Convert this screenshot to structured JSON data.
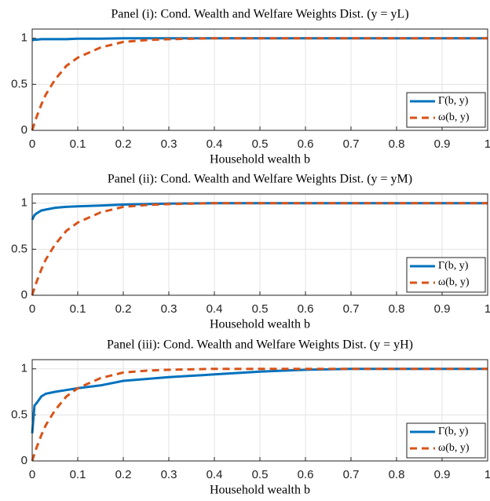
{
  "chart_data": [
    {
      "type": "line",
      "title": "Panel (i): Cond. Wealth and Welfare Weights Dist. (y = yL)",
      "xlabel": "Household wealth b",
      "x": [
        0,
        0.005,
        0.01,
        0.02,
        0.03,
        0.05,
        0.075,
        0.1,
        0.15,
        0.2,
        0.25,
        0.3,
        0.4,
        0.5,
        0.6,
        0.7,
        0.8,
        0.9,
        1
      ],
      "series": [
        {
          "name": "Γ(b, y)",
          "color": "#0072BD",
          "linestyle": "solid",
          "values": [
            0.98,
            0.985,
            0.985,
            0.99,
            0.99,
            0.99,
            0.99,
            0.995,
            0.995,
            1,
            1,
            1,
            1,
            1,
            1,
            1,
            1,
            1,
            1
          ]
        },
        {
          "name": "ω(b, y)",
          "color": "#D95319",
          "linestyle": "dashed",
          "values": [
            0,
            0.08,
            0.15,
            0.28,
            0.39,
            0.55,
            0.7,
            0.79,
            0.9,
            0.96,
            0.98,
            0.99,
            1,
            1,
            1,
            1,
            1,
            1,
            1
          ]
        }
      ],
      "xlim": [
        0,
        1
      ],
      "xticks": [
        0,
        0.1,
        0.2,
        0.3,
        0.4,
        0.5,
        0.6,
        0.7,
        0.8,
        0.9,
        1
      ],
      "ylim": [
        0,
        1.1
      ],
      "yticks": [
        0,
        0.5,
        1
      ],
      "grid": true,
      "legend": "lower right"
    },
    {
      "type": "line",
      "title": "Panel (ii): Cond. Wealth and Welfare Weights Dist. (y = yM)",
      "xlabel": "Household wealth b",
      "x": [
        0,
        0.005,
        0.01,
        0.02,
        0.03,
        0.05,
        0.075,
        0.1,
        0.15,
        0.2,
        0.25,
        0.3,
        0.4,
        0.5,
        0.6,
        0.7,
        0.8,
        0.9,
        1
      ],
      "series": [
        {
          "name": "Γ(b, y)",
          "color": "#0072BD",
          "linestyle": "solid",
          "values": [
            0.82,
            0.87,
            0.89,
            0.92,
            0.93,
            0.95,
            0.96,
            0.965,
            0.975,
            0.985,
            0.99,
            0.995,
            1,
            1,
            1,
            1,
            1,
            1,
            1
          ]
        },
        {
          "name": "ω(b, y)",
          "color": "#D95319",
          "linestyle": "dashed",
          "values": [
            0,
            0.08,
            0.15,
            0.28,
            0.39,
            0.55,
            0.7,
            0.79,
            0.9,
            0.96,
            0.98,
            0.99,
            1,
            1,
            1,
            1,
            1,
            1,
            1
          ]
        }
      ],
      "xlim": [
        0,
        1
      ],
      "xticks": [
        0,
        0.1,
        0.2,
        0.3,
        0.4,
        0.5,
        0.6,
        0.7,
        0.8,
        0.9,
        1
      ],
      "ylim": [
        0,
        1.1
      ],
      "yticks": [
        0,
        0.5,
        1
      ],
      "grid": true,
      "legend": "lower right"
    },
    {
      "type": "line",
      "title": "Panel (iii): Cond. Wealth and Welfare Weights Dist. (y = yH)",
      "xlabel": "Household wealth b",
      "x": [
        0,
        0.005,
        0.01,
        0.02,
        0.03,
        0.05,
        0.075,
        0.1,
        0.15,
        0.2,
        0.25,
        0.3,
        0.4,
        0.5,
        0.6,
        0.7,
        0.8,
        0.9,
        1
      ],
      "series": [
        {
          "name": "Γ(b, y)",
          "color": "#0072BD",
          "linestyle": "solid",
          "values": [
            0.3,
            0.6,
            0.63,
            0.7,
            0.73,
            0.75,
            0.77,
            0.79,
            0.82,
            0.87,
            0.89,
            0.91,
            0.94,
            0.97,
            0.99,
            1,
            1,
            1,
            1
          ]
        },
        {
          "name": "ω(b, y)",
          "color": "#D95319",
          "linestyle": "dashed",
          "values": [
            0,
            0.08,
            0.15,
            0.28,
            0.39,
            0.55,
            0.7,
            0.79,
            0.9,
            0.96,
            0.98,
            0.99,
            1,
            1,
            1,
            1,
            1,
            1,
            1
          ]
        }
      ],
      "xlim": [
        0,
        1
      ],
      "xticks": [
        0,
        0.1,
        0.2,
        0.3,
        0.4,
        0.5,
        0.6,
        0.7,
        0.8,
        0.9,
        1
      ],
      "ylim": [
        0,
        1.1
      ],
      "yticks": [
        0,
        0.5,
        1
      ],
      "grid": true,
      "legend": "lower right"
    }
  ]
}
